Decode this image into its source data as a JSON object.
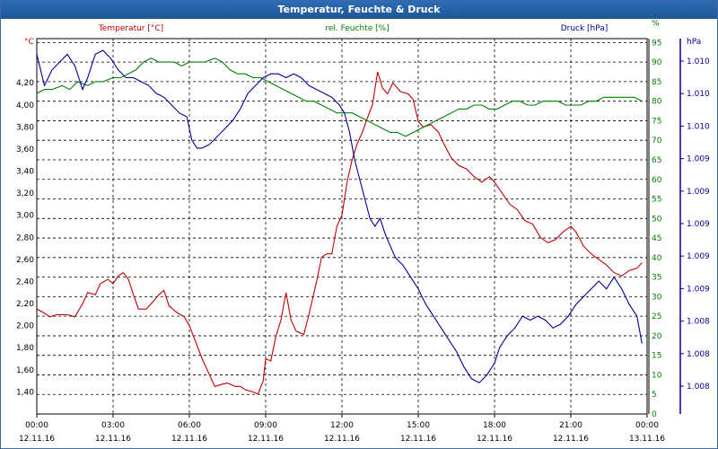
{
  "window": {
    "title": "Temperatur, Feuchte & Druck"
  },
  "chart_data": {
    "type": "line",
    "title": "Temperatur, Feuchte & Druck",
    "x_ticks": [
      {
        "time": "00:00",
        "date": "12.11.16"
      },
      {
        "time": "03:00",
        "date": "12.11.16"
      },
      {
        "time": "06:00",
        "date": "12.11.16"
      },
      {
        "time": "09:00",
        "date": "12.11.16"
      },
      {
        "time": "12:00",
        "date": "12.11.16"
      },
      {
        "time": "15:00",
        "date": "12.11.16"
      },
      {
        "time": "18:00",
        "date": "12.11.16"
      },
      {
        "time": "21:00",
        "date": "12.11.16"
      },
      {
        "time": "00:00",
        "date": "13.11.16"
      }
    ],
    "x_hours_per_tick": 3,
    "axes": {
      "temperature": {
        "unit": "°C",
        "label": "Temperatur [°C]",
        "color": "#c00000",
        "range": [
          1.2,
          4.6
        ],
        "ticks": [
          "1,40",
          "1,60",
          "1,80",
          "2,00",
          "2,20",
          "2,40",
          "2,60",
          "2,80",
          "3,00",
          "3,20",
          "3,40",
          "3,60",
          "3,80",
          "4,00",
          "4,20"
        ]
      },
      "humidity": {
        "unit": "%",
        "label": "rel. Feuchte [%]",
        "color": "#008000",
        "range": [
          0,
          96
        ],
        "ticks": [
          "0",
          "5",
          "10",
          "15",
          "20",
          "25",
          "30",
          "35",
          "40",
          "45",
          "50",
          "55",
          "60",
          "65",
          "70",
          "75",
          "80",
          "85",
          "90",
          "95",
          "%"
        ]
      },
      "pressure": {
        "unit": "hPa",
        "label": "Druck [hPa]",
        "color": "#000099",
        "ticks": [
          "1.008",
          "1.008",
          "1.008",
          "1.009",
          "1.009",
          "1.009",
          "1.009",
          "1.009",
          "1.010",
          "1.010",
          "1.010"
        ]
      }
    },
    "series": [
      {
        "name": "Temperatur [°C]",
        "color": "#c00000",
        "axis": "temperature",
        "points": [
          [
            0,
            2.15
          ],
          [
            0.25,
            2.12
          ],
          [
            0.5,
            2.08
          ],
          [
            0.8,
            2.1
          ],
          [
            1.2,
            2.1
          ],
          [
            1.5,
            2.08
          ],
          [
            1.8,
            2.2
          ],
          [
            2.0,
            2.3
          ],
          [
            2.3,
            2.28
          ],
          [
            2.5,
            2.38
          ],
          [
            2.8,
            2.42
          ],
          [
            3.0,
            2.38
          ],
          [
            3.2,
            2.45
          ],
          [
            3.4,
            2.48
          ],
          [
            3.6,
            2.42
          ],
          [
            3.8,
            2.28
          ],
          [
            4.0,
            2.15
          ],
          [
            4.3,
            2.15
          ],
          [
            4.5,
            2.2
          ],
          [
            4.8,
            2.28
          ],
          [
            5.0,
            2.32
          ],
          [
            5.2,
            2.18
          ],
          [
            5.5,
            2.12
          ],
          [
            5.8,
            2.08
          ],
          [
            6.0,
            2.0
          ],
          [
            6.2,
            1.88
          ],
          [
            6.5,
            1.7
          ],
          [
            6.8,
            1.55
          ],
          [
            7.0,
            1.45
          ],
          [
            7.3,
            1.47
          ],
          [
            7.5,
            1.48
          ],
          [
            7.8,
            1.45
          ],
          [
            8.0,
            1.45
          ],
          [
            8.2,
            1.42
          ],
          [
            8.5,
            1.4
          ],
          [
            8.7,
            1.38
          ],
          [
            8.9,
            1.5
          ],
          [
            9.0,
            1.7
          ],
          [
            9.2,
            1.68
          ],
          [
            9.4,
            1.9
          ],
          [
            9.6,
            2.05
          ],
          [
            9.8,
            2.3
          ],
          [
            10.0,
            2.05
          ],
          [
            10.2,
            1.95
          ],
          [
            10.5,
            1.92
          ],
          [
            10.7,
            2.1
          ],
          [
            11.0,
            2.4
          ],
          [
            11.2,
            2.62
          ],
          [
            11.4,
            2.65
          ],
          [
            11.6,
            2.65
          ],
          [
            11.8,
            2.9
          ],
          [
            12.0,
            3.0
          ],
          [
            12.2,
            3.3
          ],
          [
            12.4,
            3.5
          ],
          [
            12.6,
            3.65
          ],
          [
            12.8,
            3.75
          ],
          [
            13.0,
            3.88
          ],
          [
            13.2,
            4.0
          ],
          [
            13.4,
            4.3
          ],
          [
            13.6,
            4.15
          ],
          [
            13.8,
            4.1
          ],
          [
            14.0,
            4.2
          ],
          [
            14.3,
            4.12
          ],
          [
            14.6,
            4.1
          ],
          [
            14.8,
            4.05
          ],
          [
            15.0,
            3.85
          ],
          [
            15.2,
            3.8
          ],
          [
            15.5,
            3.82
          ],
          [
            15.8,
            3.75
          ],
          [
            16.0,
            3.65
          ],
          [
            16.3,
            3.52
          ],
          [
            16.6,
            3.45
          ],
          [
            16.9,
            3.42
          ],
          [
            17.2,
            3.35
          ],
          [
            17.5,
            3.3
          ],
          [
            17.8,
            3.35
          ],
          [
            18.0,
            3.3
          ],
          [
            18.3,
            3.2
          ],
          [
            18.6,
            3.1
          ],
          [
            18.9,
            3.05
          ],
          [
            19.2,
            2.95
          ],
          [
            19.5,
            2.92
          ],
          [
            19.8,
            2.8
          ],
          [
            20.1,
            2.75
          ],
          [
            20.4,
            2.78
          ],
          [
            20.7,
            2.85
          ],
          [
            21.0,
            2.9
          ],
          [
            21.2,
            2.85
          ],
          [
            21.5,
            2.72
          ],
          [
            21.8,
            2.65
          ],
          [
            22.1,
            2.6
          ],
          [
            22.4,
            2.55
          ],
          [
            22.7,
            2.48
          ],
          [
            23.0,
            2.45
          ],
          [
            23.3,
            2.5
          ],
          [
            23.6,
            2.52
          ],
          [
            23.8,
            2.57
          ]
        ]
      },
      {
        "name": "rel. Feuchte [%]",
        "color": "#008000",
        "axis": "humidity",
        "points": [
          [
            0,
            82
          ],
          [
            0.3,
            83
          ],
          [
            0.6,
            83
          ],
          [
            1.0,
            84
          ],
          [
            1.3,
            83
          ],
          [
            1.6,
            85
          ],
          [
            2.0,
            84
          ],
          [
            2.3,
            85
          ],
          [
            2.6,
            85
          ],
          [
            3.0,
            86
          ],
          [
            3.3,
            86
          ],
          [
            3.6,
            87
          ],
          [
            3.9,
            88
          ],
          [
            4.2,
            90
          ],
          [
            4.5,
            91
          ],
          [
            4.8,
            90
          ],
          [
            5.1,
            90
          ],
          [
            5.4,
            90
          ],
          [
            5.7,
            89
          ],
          [
            6.0,
            90
          ],
          [
            6.3,
            90
          ],
          [
            6.6,
            90
          ],
          [
            7.0,
            91
          ],
          [
            7.3,
            90
          ],
          [
            7.6,
            88
          ],
          [
            7.9,
            87
          ],
          [
            8.2,
            87
          ],
          [
            8.5,
            86
          ],
          [
            8.8,
            86
          ],
          [
            9.1,
            85
          ],
          [
            9.4,
            84
          ],
          [
            9.7,
            83
          ],
          [
            10.0,
            82
          ],
          [
            10.3,
            81
          ],
          [
            10.6,
            80
          ],
          [
            10.9,
            80
          ],
          [
            11.2,
            79
          ],
          [
            11.5,
            78
          ],
          [
            11.8,
            77
          ],
          [
            12.1,
            77
          ],
          [
            12.4,
            77
          ],
          [
            12.7,
            76
          ],
          [
            13.0,
            75
          ],
          [
            13.3,
            74
          ],
          [
            13.6,
            73
          ],
          [
            13.9,
            72
          ],
          [
            14.2,
            72
          ],
          [
            14.5,
            71
          ],
          [
            14.8,
            72
          ],
          [
            15.1,
            73
          ],
          [
            15.4,
            74
          ],
          [
            15.7,
            75
          ],
          [
            16.0,
            76
          ],
          [
            16.3,
            77
          ],
          [
            16.6,
            78
          ],
          [
            16.9,
            78
          ],
          [
            17.2,
            79
          ],
          [
            17.5,
            79
          ],
          [
            17.8,
            78
          ],
          [
            18.1,
            78
          ],
          [
            18.4,
            79
          ],
          [
            18.7,
            80
          ],
          [
            19.0,
            80
          ],
          [
            19.3,
            79
          ],
          [
            19.6,
            79
          ],
          [
            19.9,
            80
          ],
          [
            20.2,
            80
          ],
          [
            20.5,
            80
          ],
          [
            20.8,
            79
          ],
          [
            21.1,
            79
          ],
          [
            21.4,
            79
          ],
          [
            21.7,
            80
          ],
          [
            22.0,
            80
          ],
          [
            22.3,
            81
          ],
          [
            22.6,
            81
          ],
          [
            22.9,
            81
          ],
          [
            23.2,
            81
          ],
          [
            23.5,
            81
          ],
          [
            23.8,
            80
          ]
        ]
      },
      {
        "name": "Druck [hPa]",
        "color": "#000099",
        "axis": "pressure",
        "points": [
          [
            0,
            92
          ],
          [
            0.3,
            84
          ],
          [
            0.6,
            88
          ],
          [
            0.9,
            90
          ],
          [
            1.2,
            92
          ],
          [
            1.5,
            89
          ],
          [
            1.8,
            83
          ],
          [
            2.0,
            86
          ],
          [
            2.3,
            92
          ],
          [
            2.6,
            93
          ],
          [
            2.9,
            91
          ],
          [
            3.2,
            88
          ],
          [
            3.5,
            86
          ],
          [
            3.8,
            86
          ],
          [
            4.1,
            85
          ],
          [
            4.4,
            84
          ],
          [
            4.7,
            82
          ],
          [
            5.0,
            81
          ],
          [
            5.3,
            79
          ],
          [
            5.6,
            77
          ],
          [
            5.9,
            76
          ],
          [
            6.1,
            70
          ],
          [
            6.3,
            68
          ],
          [
            6.5,
            68
          ],
          [
            6.8,
            69
          ],
          [
            7.1,
            71
          ],
          [
            7.4,
            73
          ],
          [
            7.7,
            75
          ],
          [
            8.0,
            78
          ],
          [
            8.3,
            82
          ],
          [
            8.6,
            84
          ],
          [
            8.9,
            86
          ],
          [
            9.2,
            87
          ],
          [
            9.5,
            87
          ],
          [
            9.8,
            86
          ],
          [
            10.1,
            87
          ],
          [
            10.4,
            86
          ],
          [
            10.7,
            84
          ],
          [
            11.0,
            83
          ],
          [
            11.3,
            82
          ],
          [
            11.6,
            81
          ],
          [
            11.9,
            79
          ],
          [
            12.1,
            77
          ],
          [
            12.3,
            72
          ],
          [
            12.5,
            65
          ],
          [
            12.7,
            60
          ],
          [
            12.9,
            55
          ],
          [
            13.1,
            50
          ],
          [
            13.3,
            48
          ],
          [
            13.5,
            50
          ],
          [
            13.7,
            46
          ],
          [
            13.9,
            43
          ],
          [
            14.1,
            40
          ],
          [
            14.4,
            38
          ],
          [
            14.7,
            35
          ],
          [
            15.0,
            32
          ],
          [
            15.3,
            28
          ],
          [
            15.6,
            25
          ],
          [
            15.9,
            22
          ],
          [
            16.2,
            19
          ],
          [
            16.5,
            16
          ],
          [
            16.8,
            12
          ],
          [
            17.1,
            9
          ],
          [
            17.4,
            8
          ],
          [
            17.7,
            10
          ],
          [
            18.0,
            13
          ],
          [
            18.2,
            17
          ],
          [
            18.5,
            20
          ],
          [
            18.8,
            22
          ],
          [
            19.1,
            25
          ],
          [
            19.4,
            24
          ],
          [
            19.7,
            25
          ],
          [
            20.0,
            24
          ],
          [
            20.3,
            22
          ],
          [
            20.6,
            23
          ],
          [
            20.9,
            25
          ],
          [
            21.2,
            28
          ],
          [
            21.5,
            30
          ],
          [
            21.8,
            32
          ],
          [
            22.1,
            34
          ],
          [
            22.4,
            32
          ],
          [
            22.7,
            35
          ],
          [
            23.0,
            32
          ],
          [
            23.3,
            28
          ],
          [
            23.6,
            25
          ],
          [
            23.8,
            18
          ]
        ]
      }
    ],
    "grid": true,
    "legend": "top"
  }
}
